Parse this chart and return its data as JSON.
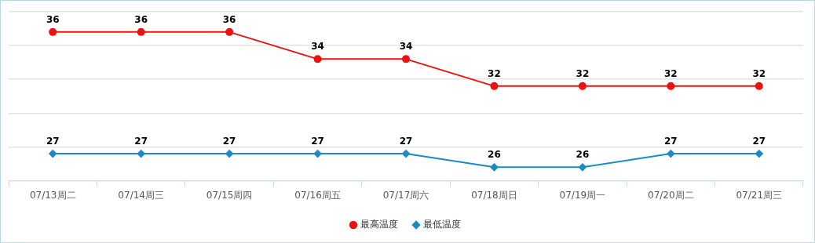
{
  "chart_data": {
    "type": "line",
    "categories": [
      "07/13周二",
      "07/14周三",
      "07/15周四",
      "07/16周五",
      "07/17周六",
      "07/18周日",
      "07/19周一",
      "07/20周二",
      "07/21周三"
    ],
    "series": [
      {
        "name": "最高温度",
        "color": "#ee1111",
        "marker": "circle",
        "values": [
          36,
          36,
          36,
          34,
          34,
          32,
          32,
          32,
          32
        ]
      },
      {
        "name": "最低温度",
        "color": "#1a8bc4",
        "marker": "diamond",
        "values": [
          27,
          27,
          27,
          27,
          27,
          26,
          26,
          27,
          27
        ]
      }
    ],
    "ylim": [
      25,
      37.5
    ],
    "yticks": [
      {
        "value": 25,
        "label": null
      },
      {
        "value": 27.5,
        "label": null
      },
      {
        "value": 30,
        "label": null
      },
      {
        "value": 32.5,
        "label": null
      },
      {
        "value": 35,
        "label": null
      },
      {
        "value": 37.5,
        "label": null
      }
    ],
    "tick_labels": "x",
    "grid": "y",
    "legend": "bottom",
    "data_labels": true,
    "line_style": "solid"
  }
}
